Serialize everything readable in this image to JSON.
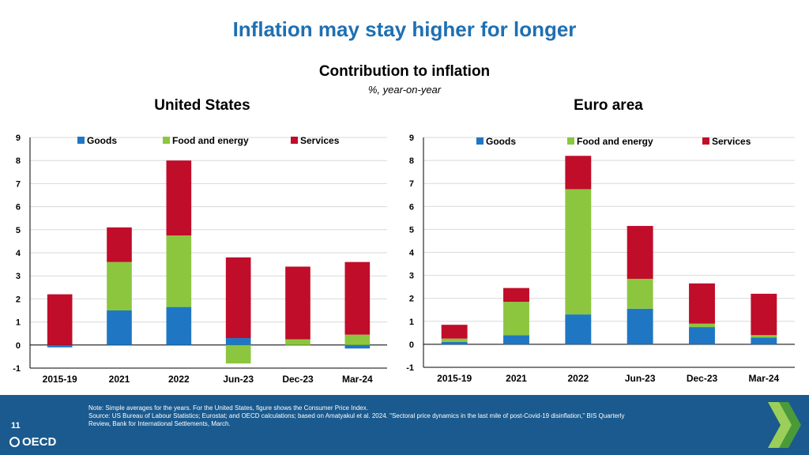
{
  "slide": {
    "title": "Inflation may stay higher for longer",
    "subtitle": "Contribution to inflation",
    "unit": "%, year-on-year",
    "page_number": "11",
    "logo_text": "OECD",
    "note_lines": [
      "Note: Simple averages for the years. For the United States, figure shows the Consumer Price Index.",
      "Source: US Bureau of Labour Statistics; Eurostat; and OECD calculations; based on Amatyakul et al. 2024. \"Sectoral price dynamics in the last mile of post-Covid-19 disinflation,\" BIS Quarterly",
      "Review, Bank for International Settlements, March."
    ]
  },
  "colors": {
    "title": "#1f6fb2",
    "goods": "#1f77c4",
    "food_energy": "#8cc63f",
    "services": "#c00d2a",
    "footer": "#1a5a8e",
    "chevron_light": "#9bcf5a",
    "chevron_dark": "#4a9a3a"
  },
  "chart_data": [
    {
      "type": "bar",
      "stacked": true,
      "title": "United States",
      "categories": [
        "2015-19",
        "2021",
        "2022",
        "Jun-23",
        "Dec-23",
        "Mar-24"
      ],
      "series": [
        {
          "name": "Goods",
          "values": [
            -0.1,
            1.5,
            1.65,
            0.3,
            0.0,
            -0.15
          ]
        },
        {
          "name": "Food and energy",
          "values": [
            0.0,
            2.1,
            3.1,
            -0.8,
            0.25,
            0.45
          ]
        },
        {
          "name": "Services",
          "values": [
            2.2,
            1.5,
            3.25,
            3.5,
            3.15,
            3.15
          ]
        }
      ],
      "ylim": [
        -1,
        9
      ],
      "yticks": [
        -1,
        0,
        1,
        2,
        3,
        4,
        5,
        6,
        7,
        8,
        9
      ],
      "grid": true,
      "legend": "top"
    },
    {
      "type": "bar",
      "stacked": true,
      "title": "Euro area",
      "categories": [
        "2015-19",
        "2021",
        "2022",
        "Jun-23",
        "Dec-23",
        "Mar-24"
      ],
      "series": [
        {
          "name": "Goods",
          "values": [
            0.1,
            0.4,
            1.3,
            1.55,
            0.75,
            0.3
          ]
        },
        {
          "name": "Food and energy",
          "values": [
            0.15,
            1.45,
            5.45,
            1.3,
            0.15,
            0.1
          ]
        },
        {
          "name": "Services",
          "values": [
            0.6,
            0.6,
            1.45,
            2.3,
            1.75,
            1.8
          ]
        }
      ],
      "ylim": [
        -1,
        9
      ],
      "yticks": [
        -1,
        0,
        1,
        2,
        3,
        4,
        5,
        6,
        7,
        8,
        9
      ],
      "grid": true,
      "legend": "top"
    }
  ]
}
